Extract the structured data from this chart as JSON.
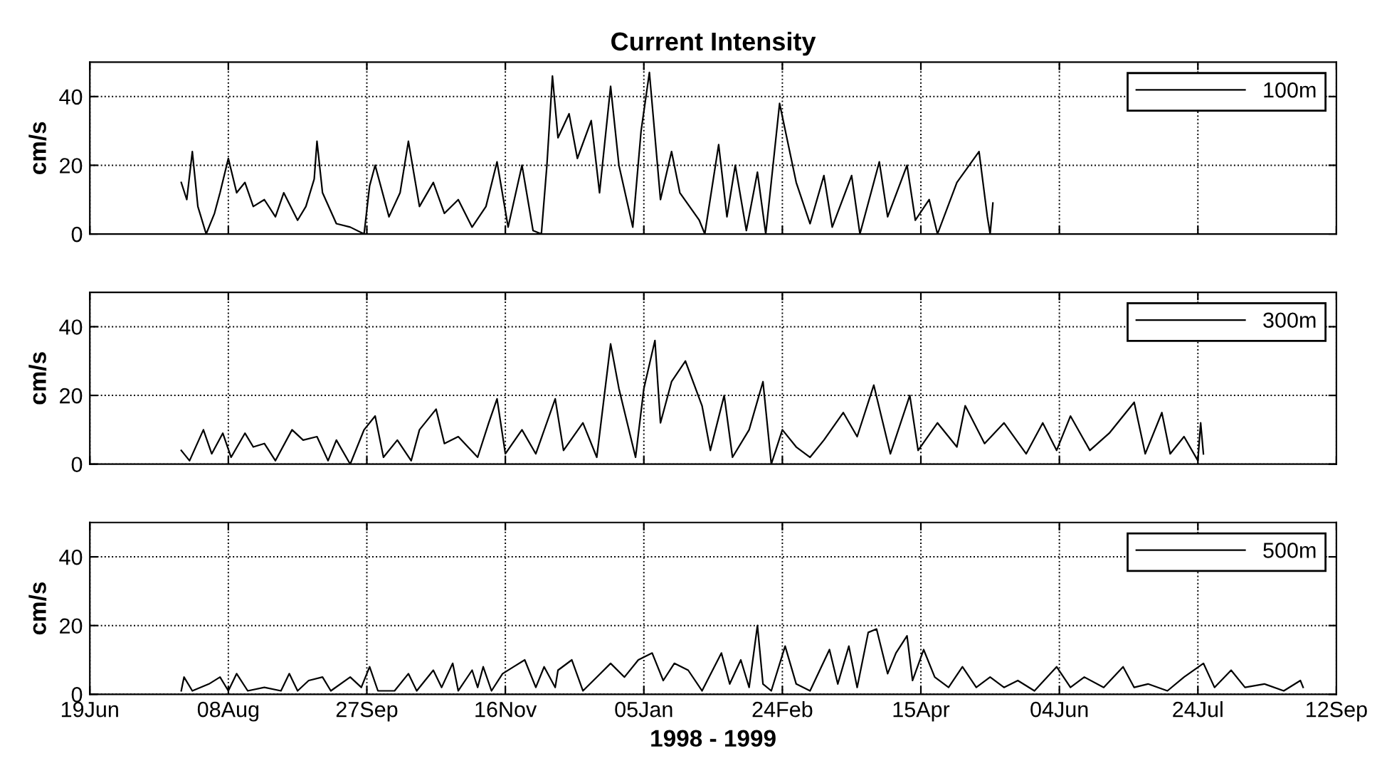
{
  "chart_data": [
    {
      "type": "line",
      "title": "Current Intensity",
      "ylabel": "cm/s",
      "grid": true,
      "legend": "top right",
      "tick_labels": "y",
      "xlim": [
        "1998-06-19",
        "1999-09-12"
      ],
      "xticks": [
        {
          "value": "1998-06-19",
          "label": null
        },
        {
          "value": "1998-08-08",
          "label": null
        },
        {
          "value": "1998-09-27",
          "label": null
        },
        {
          "value": "1998-11-16",
          "label": null
        },
        {
          "value": "1999-01-05",
          "label": null
        },
        {
          "value": "1999-02-24",
          "label": null
        },
        {
          "value": "1999-04-15",
          "label": null
        },
        {
          "value": "1999-06-04",
          "label": null
        },
        {
          "value": "1999-07-24",
          "label": null
        },
        {
          "value": "1999-09-12",
          "label": null
        }
      ],
      "ylim": [
        0,
        50
      ],
      "yticks": [
        0,
        20,
        40
      ],
      "x": [
        "1998-07-22",
        "1998-07-24",
        "1998-07-26",
        "1998-07-28",
        "1998-07-31",
        "1998-08-03",
        "1998-08-05",
        "1998-08-08",
        "1998-08-11",
        "1998-08-14",
        "1998-08-17",
        "1998-08-21",
        "1998-08-25",
        "1998-08-28",
        "1998-09-02",
        "1998-09-05",
        "1998-09-08",
        "1998-09-09",
        "1998-09-11",
        "1998-09-16",
        "1998-09-21",
        "1998-09-26",
        "1998-09-28",
        "1998-09-30",
        "1998-10-05",
        "1998-10-09",
        "1998-10-12",
        "1998-10-16",
        "1998-10-21",
        "1998-10-25",
        "1998-10-30",
        "1998-11-04",
        "1998-11-09",
        "1998-11-13",
        "1998-11-17",
        "1998-11-22",
        "1998-11-26",
        "1998-11-29",
        "1998-12-01",
        "1998-12-03",
        "1998-12-05",
        "1998-12-09",
        "1998-12-12",
        "1998-12-17",
        "1998-12-20",
        "1998-12-24",
        "1998-12-27",
        "1999-01-01",
        "1999-01-04",
        "1999-01-07",
        "1999-01-11",
        "1999-01-15",
        "1999-01-18",
        "1999-01-25",
        "1999-01-27",
        "1999-02-01",
        "1999-02-04",
        "1999-02-07",
        "1999-02-11",
        "1999-02-15",
        "1999-02-18",
        "1999-02-23",
        "1999-03-01",
        "1999-03-06",
        "1999-03-11",
        "1999-03-14",
        "1999-03-21",
        "1999-03-24",
        "1999-03-31",
        "1999-04-03",
        "1999-04-10",
        "1999-04-13",
        "1999-04-18",
        "1999-04-21",
        "1999-04-28",
        "1999-05-06",
        "1999-05-09",
        "1999-05-10",
        "1999-05-11"
      ],
      "series": [
        {
          "name": "100m",
          "color": "#000000",
          "values": [
            15,
            10,
            24,
            8,
            0,
            6,
            12,
            22,
            12,
            15,
            8,
            10,
            5,
            12,
            4,
            8,
            16,
            27,
            12,
            3,
            2,
            0,
            14,
            20,
            5,
            12,
            27,
            8,
            15,
            6,
            10,
            2,
            8,
            21,
            2,
            20,
            1,
            0,
            20,
            46,
            28,
            35,
            22,
            33,
            12,
            43,
            20,
            2,
            30,
            47,
            10,
            24,
            12,
            4,
            0,
            26,
            5,
            20,
            1,
            18,
            0,
            38,
            15,
            3,
            17,
            2,
            17,
            0,
            21,
            5,
            20,
            4,
            10,
            0,
            15,
            24,
            5,
            0,
            9
          ]
        }
      ]
    },
    {
      "type": "line",
      "ylabel": "cm/s",
      "grid": true,
      "legend": "top right",
      "tick_labels": "y",
      "xlim": [
        "1998-06-19",
        "1999-09-12"
      ],
      "xticks": [
        {
          "value": "1998-06-19",
          "label": null
        },
        {
          "value": "1998-08-08",
          "label": null
        },
        {
          "value": "1998-09-27",
          "label": null
        },
        {
          "value": "1998-11-16",
          "label": null
        },
        {
          "value": "1999-01-05",
          "label": null
        },
        {
          "value": "1999-02-24",
          "label": null
        },
        {
          "value": "1999-04-15",
          "label": null
        },
        {
          "value": "1999-06-04",
          "label": null
        },
        {
          "value": "1999-07-24",
          "label": null
        },
        {
          "value": "1999-09-12",
          "label": null
        }
      ],
      "ylim": [
        0,
        50
      ],
      "yticks": [
        0,
        20,
        40
      ],
      "x": [
        "1998-07-22",
        "1998-07-25",
        "1998-07-30",
        "1998-08-02",
        "1998-08-06",
        "1998-08-09",
        "1998-08-14",
        "1998-08-17",
        "1998-08-21",
        "1998-08-25",
        "1998-08-31",
        "1998-09-04",
        "1998-09-09",
        "1998-09-13",
        "1998-09-16",
        "1998-09-21",
        "1998-09-26",
        "1998-09-30",
        "1998-10-03",
        "1998-10-08",
        "1998-10-13",
        "1998-10-16",
        "1998-10-22",
        "1998-10-25",
        "1998-10-30",
        "1998-11-06",
        "1998-11-10",
        "1998-11-13",
        "1998-11-16",
        "1998-11-22",
        "1998-11-27",
        "1998-12-04",
        "1998-12-07",
        "1998-12-14",
        "1998-12-19",
        "1998-12-24",
        "1998-12-27",
        "1999-01-02",
        "1999-01-05",
        "1999-01-09",
        "1999-01-11",
        "1999-01-15",
        "1999-01-20",
        "1999-01-26",
        "1999-01-29",
        "1999-02-03",
        "1999-02-06",
        "1999-02-12",
        "1999-02-17",
        "1999-02-20",
        "1999-02-24",
        "1999-03-01",
        "1999-03-06",
        "1999-03-11",
        "1999-03-18",
        "1999-03-23",
        "1999-03-29",
        "1999-04-04",
        "1999-04-11",
        "1999-04-14",
        "1999-04-21",
        "1999-04-28",
        "1999-05-01",
        "1999-05-08",
        "1999-05-15",
        "1999-05-23",
        "1999-05-29",
        "1999-06-03",
        "1999-06-08",
        "1999-06-15",
        "1999-06-22",
        "1999-07-01",
        "1999-07-05",
        "1999-07-11",
        "1999-07-14",
        "1999-07-19",
        "1999-07-24",
        "1999-07-25",
        "1999-07-26"
      ],
      "series": [
        {
          "name": "300m",
          "color": "#000000",
          "values": [
            4,
            1,
            10,
            3,
            9,
            2,
            9,
            5,
            6,
            1,
            10,
            7,
            8,
            1,
            7,
            0,
            10,
            14,
            2,
            7,
            1,
            10,
            16,
            6,
            8,
            2,
            12,
            19,
            3,
            10,
            3,
            19,
            4,
            12,
            2,
            35,
            22,
            2,
            22,
            36,
            12,
            24,
            30,
            17,
            4,
            20,
            2,
            10,
            24,
            0,
            10,
            5,
            2,
            7,
            15,
            8,
            23,
            3,
            20,
            4,
            12,
            5,
            17,
            6,
            12,
            3,
            12,
            4,
            14,
            4,
            9,
            18,
            3,
            15,
            3,
            8,
            1,
            12,
            3
          ]
        }
      ]
    },
    {
      "type": "line",
      "ylabel": "cm/s",
      "xlabel": "1998 - 1999",
      "grid": true,
      "legend": "top right",
      "xlim": [
        "1998-06-19",
        "1999-09-12"
      ],
      "xticks": [
        {
          "value": "1998-06-19",
          "label": "19Jun"
        },
        {
          "value": "1998-08-08",
          "label": "08Aug"
        },
        {
          "value": "1998-09-27",
          "label": "27Sep"
        },
        {
          "value": "1998-11-16",
          "label": "16Nov"
        },
        {
          "value": "1999-01-05",
          "label": "05Jan"
        },
        {
          "value": "1999-02-24",
          "label": "24Feb"
        },
        {
          "value": "1999-04-15",
          "label": "15Apr"
        },
        {
          "value": "1999-06-04",
          "label": "04Jun"
        },
        {
          "value": "1999-07-24",
          "label": "24Jul"
        },
        {
          "value": "1999-09-12",
          "label": "12Sep"
        }
      ],
      "ylim": [
        0,
        50
      ],
      "yticks": [
        0,
        20,
        40
      ],
      "x": [
        "1998-07-22",
        "1998-07-23",
        "1998-07-26",
        "1998-08-01",
        "1998-08-05",
        "1998-08-08",
        "1998-08-11",
        "1998-08-15",
        "1998-08-21",
        "1998-08-27",
        "1998-08-30",
        "1998-09-02",
        "1998-09-06",
        "1998-09-11",
        "1998-09-14",
        "1998-09-21",
        "1998-09-25",
        "1998-09-28",
        "1998-10-01",
        "1998-10-07",
        "1998-10-12",
        "1998-10-15",
        "1998-10-21",
        "1998-10-24",
        "1998-10-28",
        "1998-10-30",
        "1998-11-04",
        "1998-11-06",
        "1998-11-08",
        "1998-11-11",
        "1998-11-15",
        "1998-11-19",
        "1998-11-23",
        "1998-11-27",
        "1998-11-30",
        "1998-12-04",
        "1998-12-05",
        "1998-12-10",
        "1998-12-14",
        "1998-12-19",
        "1998-12-24",
        "1998-12-29",
        "1999-01-03",
        "1999-01-08",
        "1999-01-12",
        "1999-01-16",
        "1999-01-21",
        "1999-01-26",
        "1999-02-02",
        "1999-02-05",
        "1999-02-09",
        "1999-02-12",
        "1999-02-15",
        "1999-02-17",
        "1999-02-20",
        "1999-02-25",
        "1999-03-01",
        "1999-03-06",
        "1999-03-13",
        "1999-03-16",
        "1999-03-20",
        "1999-03-23",
        "1999-03-27",
        "1999-03-30",
        "1999-04-03",
        "1999-04-06",
        "1999-04-10",
        "1999-04-12",
        "1999-04-16",
        "1999-04-20",
        "1999-04-25",
        "1999-04-30",
        "1999-05-05",
        "1999-05-10",
        "1999-05-15",
        "1999-05-20",
        "1999-05-26",
        "1999-06-03",
        "1999-06-08",
        "1999-06-13",
        "1999-06-20",
        "1999-06-27",
        "1999-07-01",
        "1999-07-06",
        "1999-07-13",
        "1999-07-19",
        "1999-07-26",
        "1999-07-30",
        "1999-08-05",
        "1999-08-10",
        "1999-08-17",
        "1999-08-24",
        "1999-08-30",
        "1999-08-31"
      ],
      "series": [
        {
          "name": "500m",
          "color": "#000000",
          "values": [
            1,
            5,
            1,
            3,
            5,
            1,
            6,
            1,
            2,
            1,
            6,
            1,
            4,
            5,
            1,
            5,
            2,
            8,
            1,
            1,
            6,
            1,
            7,
            2,
            9,
            1,
            7,
            2,
            8,
            1,
            6,
            8,
            10,
            2,
            8,
            2,
            7,
            10,
            1,
            5,
            9,
            5,
            10,
            12,
            4,
            9,
            7,
            1,
            12,
            3,
            10,
            2,
            20,
            3,
            1,
            14,
            3,
            1,
            13,
            3,
            14,
            2,
            18,
            19,
            6,
            12,
            17,
            4,
            13,
            5,
            2,
            8,
            2,
            5,
            2,
            4,
            1,
            8,
            2,
            5,
            2,
            8,
            2,
            3,
            1,
            5,
            9,
            2,
            7,
            2,
            3,
            1,
            4,
            2
          ]
        }
      ]
    }
  ]
}
